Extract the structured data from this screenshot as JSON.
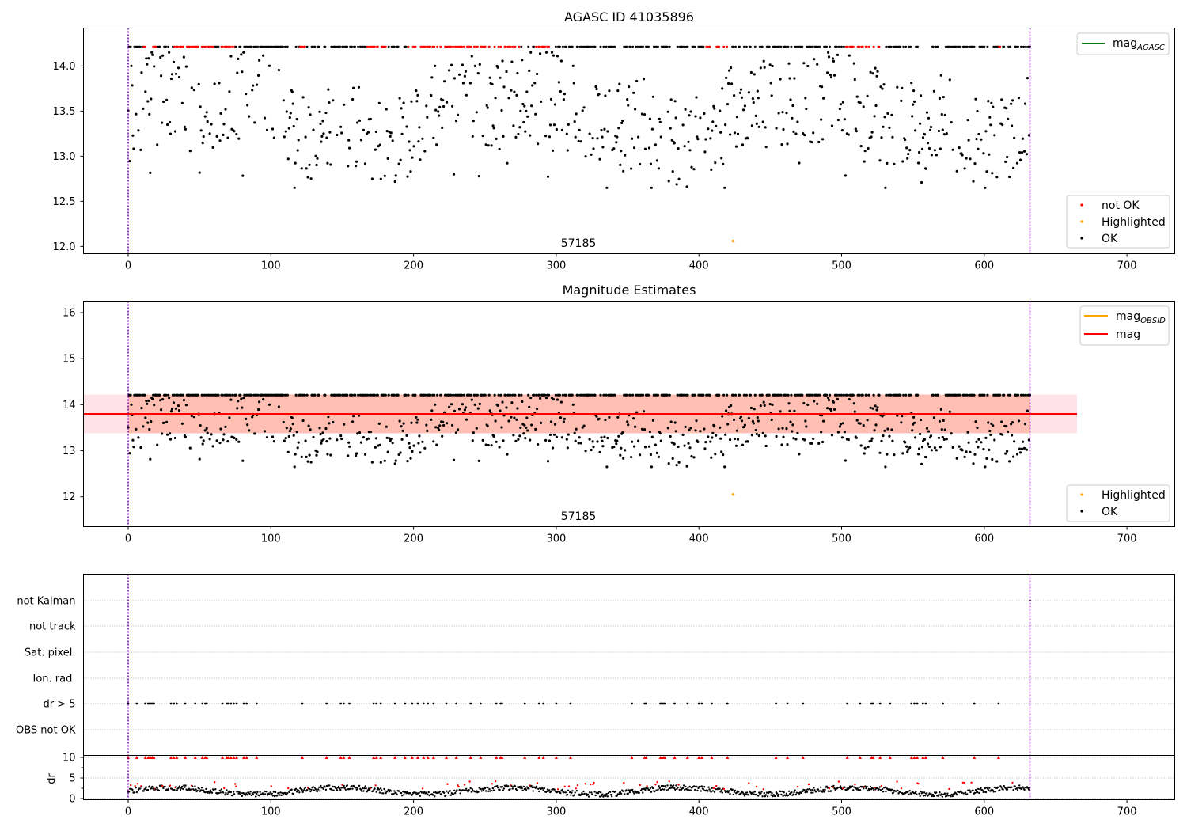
{
  "chart_data": [
    {
      "type": "scatter",
      "title": "AGASC ID 41035896",
      "annotation": "57185",
      "xlim": [
        -32,
        732
      ],
      "ylim": [
        11.92,
        14.42
      ],
      "xticks": [
        0,
        100,
        200,
        300,
        400,
        500,
        600,
        700
      ],
      "yticks": [
        "12.0",
        "12.5",
        "13.0",
        "13.5",
        "14.0"
      ],
      "vlines": [
        0,
        632
      ],
      "series": [
        {
          "name": "mag_AGASC",
          "kind": "line",
          "color": "#008000",
          "y": 14.21
        },
        {
          "name": "not OK",
          "color": "#ff0000",
          "x_range": [
            0,
            632
          ],
          "note": "points at 14.21 in red in several intervals"
        },
        {
          "name": "Highlighted",
          "color": "#ffa500",
          "points": [
            [
              424,
              12.06
            ]
          ]
        },
        {
          "name": "OK",
          "color": "#000000",
          "x_range": [
            0,
            632
          ],
          "y_range": [
            12.65,
            14.21
          ]
        }
      ],
      "legends": [
        {
          "position": "upper right",
          "entries": [
            {
              "label": "mag",
              "sub": "AGASC",
              "color": "#008000"
            }
          ]
        },
        {
          "position": "lower right",
          "entries": [
            {
              "label": "not OK",
              "color": "#ff0000"
            },
            {
              "label": "Highlighted",
              "color": "#ffa500"
            },
            {
              "label": "OK",
              "color": "#000000"
            }
          ]
        }
      ]
    },
    {
      "type": "scatter",
      "title": "Magnitude Estimates",
      "annotation": "57185",
      "xlim": [
        -32,
        732
      ],
      "ylim": [
        11.35,
        16.25
      ],
      "xticks": [
        0,
        100,
        200,
        300,
        400,
        500,
        600,
        700
      ],
      "yticks": [
        "12",
        "13",
        "14",
        "15",
        "16"
      ],
      "vlines": [
        0,
        632
      ],
      "bands": [
        {
          "color": "#ffc0cb",
          "opacity": 0.45,
          "x": [
            -32,
            665
          ],
          "y": [
            13.38,
            14.22
          ]
        },
        {
          "color": "#ff7f50",
          "opacity": 0.35,
          "x": [
            0,
            632
          ],
          "y": [
            13.38,
            14.22
          ]
        }
      ],
      "series": [
        {
          "name": "mag_OBSID",
          "kind": "line",
          "color": "#ffa500",
          "y": 13.8
        },
        {
          "name": "mag",
          "kind": "line",
          "color": "#ff0000",
          "y": 13.8,
          "x": [
            -32,
            665
          ]
        },
        {
          "name": "Highlighted",
          "color": "#ffa500",
          "points": [
            [
              424,
              12.05
            ]
          ]
        },
        {
          "name": "OK",
          "color": "#000000",
          "x_range": [
            0,
            632
          ],
          "y_range": [
            12.65,
            14.21
          ]
        }
      ],
      "legends": [
        {
          "position": "upper right",
          "entries": [
            {
              "label": "mag",
              "sub": "OBSID",
              "color": "#ffa500"
            },
            {
              "label": "mag",
              "color": "#ff0000"
            }
          ]
        },
        {
          "position": "lower right",
          "entries": [
            {
              "label": "Highlighted",
              "color": "#ffa500"
            },
            {
              "label": "OK",
              "color": "#000000"
            }
          ]
        }
      ]
    },
    {
      "type": "scatter",
      "title": "",
      "xlim": [
        -32,
        732
      ],
      "xticks": [
        0,
        100,
        200,
        300,
        400,
        500,
        600,
        700
      ],
      "vlines": [
        0,
        632
      ],
      "flag_categories": [
        "not Kalman",
        "not track",
        "Sat. pixel.",
        "Ion. rad.",
        "dr > 5",
        "OBS not OK"
      ],
      "flag_points": {
        "dr > 5": "black dots at several x values",
        "not Kalman": [
          [
            632
          ]
        ]
      },
      "dr_ylim": [
        -0.5,
        10.5
      ],
      "dr_yticks": [
        "0",
        "5",
        "10"
      ],
      "dr_ylabel": "dr",
      "series": [
        {
          "name": "dr OK",
          "color": "#000000",
          "x_range": [
            0,
            632
          ],
          "y_range": [
            0,
            3
          ]
        },
        {
          "name": "dr not OK",
          "color": "#ff0000",
          "x_range": [
            0,
            632
          ],
          "y_range": [
            2,
            10
          ]
        }
      ]
    }
  ]
}
